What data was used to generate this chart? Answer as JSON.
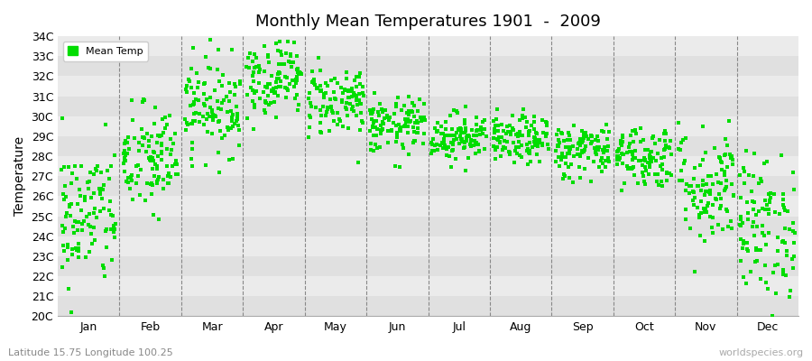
{
  "title": "Monthly Mean Temperatures 1901  -  2009",
  "ylabel": "Temperature",
  "subtitle": "Latitude 15.75 Longitude 100.25",
  "watermark": "worldspecies.org",
  "months": [
    "Jan",
    "Feb",
    "Mar",
    "Apr",
    "May",
    "Jun",
    "Jul",
    "Aug",
    "Sep",
    "Oct",
    "Nov",
    "Dec"
  ],
  "ylim": [
    20,
    34
  ],
  "yticks": [
    20,
    21,
    22,
    23,
    24,
    25,
    26,
    27,
    28,
    29,
    30,
    31,
    32,
    33,
    34
  ],
  "ytick_labels": [
    "20C",
    "21C",
    "22C",
    "23C",
    "24C",
    "25C",
    "26C",
    "27C",
    "28C",
    "29C",
    "30C",
    "31C",
    "32C",
    "33C",
    "34C"
  ],
  "dot_color": "#00dd00",
  "background_color": "#ffffff",
  "band_color_dark": "#e0e0e0",
  "band_color_light": "#ebebeb",
  "legend_label": "Mean Temp",
  "n_years": 109,
  "month_means": [
    25.0,
    27.8,
    30.5,
    32.0,
    30.8,
    29.5,
    29.0,
    28.8,
    28.3,
    28.0,
    26.5,
    24.5
  ],
  "month_stds": [
    1.8,
    1.4,
    1.2,
    1.0,
    0.9,
    0.7,
    0.6,
    0.6,
    0.7,
    0.8,
    1.5,
    1.8
  ]
}
